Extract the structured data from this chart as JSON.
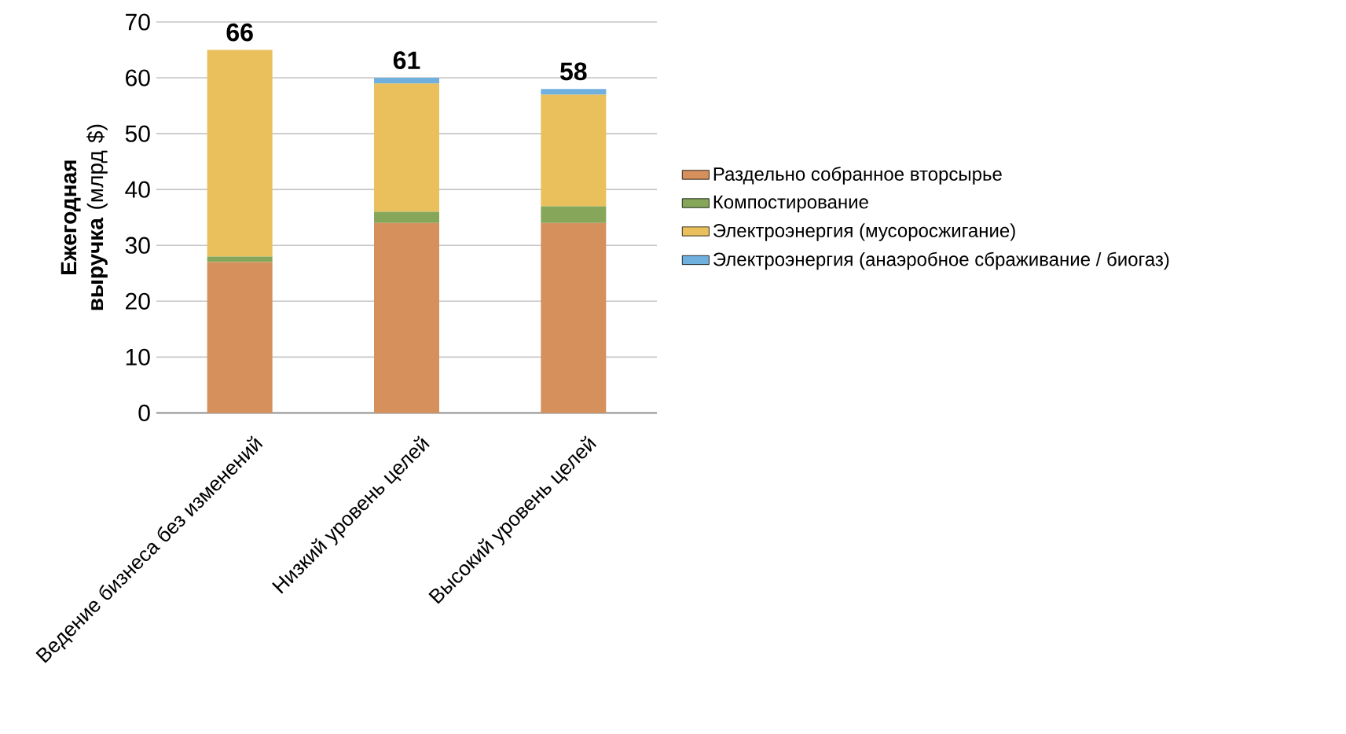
{
  "chart_data": {
    "type": "bar",
    "stacked": true,
    "ylabel": "**Ежегодная выручка** (млрд $)",
    "categories": [
      "Ведение бизнеса без изменений",
      "Низкий уровень целей",
      "Высокий уровень целей"
    ],
    "series": [
      {
        "name": "Раздельно собранное вторсырье",
        "color": "#d5905c",
        "values": [
          27,
          34,
          34
        ]
      },
      {
        "name": "Компостирование",
        "color": "#86a75a",
        "values": [
          1,
          2,
          3
        ]
      },
      {
        "name": "Электроэнергия (мусоросжигание)",
        "color": "#e9c05b",
        "values": [
          37,
          23,
          20
        ]
      },
      {
        "name": "Электроэнергия (анаэробное сбраживание / биогаз)",
        "color": "#70b0df",
        "values": [
          0,
          1,
          1
        ]
      }
    ],
    "totals": [
      "66",
      "61",
      "58"
    ],
    "ylim": [
      0,
      70
    ],
    "yticks": [
      0,
      10,
      20,
      30,
      40,
      50,
      60,
      70
    ],
    "grid": "y",
    "legend": "right"
  }
}
